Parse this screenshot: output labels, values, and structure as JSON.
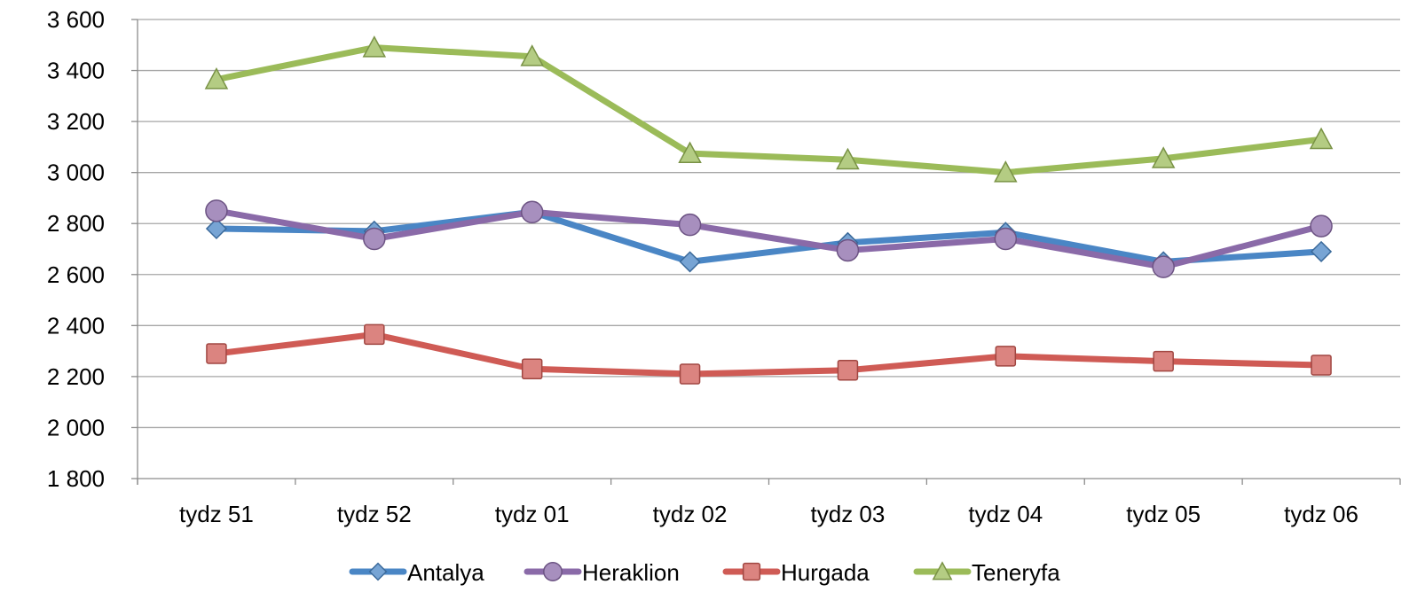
{
  "chart_data": {
    "type": "line",
    "categories": [
      "tydz 51",
      "tydz 52",
      "tydz 01",
      "tydz 02",
      "tydz 03",
      "tydz 04",
      "tydz 05",
      "tydz 06"
    ],
    "y_ticks": [
      "1 800",
      "2 000",
      "2 200",
      "2 400",
      "2 600",
      "2 800",
      "3 000",
      "3 200",
      "3 400",
      "3 600"
    ],
    "ylim": [
      1800,
      3600
    ],
    "ytick_step": 200,
    "grid": "horizontal",
    "legend_position": "bottom",
    "series": [
      {
        "name": "Antalya",
        "marker": "diamond",
        "color": "#4a86c5",
        "values": [
          2780,
          2770,
          2845,
          2650,
          2725,
          2765,
          2650,
          2690
        ]
      },
      {
        "name": "Heraklion",
        "marker": "circle",
        "color": "#8a6aa8",
        "values": [
          2850,
          2740,
          2845,
          2795,
          2695,
          2740,
          2630,
          2790
        ]
      },
      {
        "name": "Hurgada",
        "marker": "square",
        "color": "#cf5b55",
        "values": [
          2290,
          2365,
          2230,
          2210,
          2225,
          2280,
          2260,
          2245
        ]
      },
      {
        "name": "Teneryfa",
        "marker": "triangle",
        "color": "#9bbb59",
        "values": [
          3365,
          3490,
          3455,
          3075,
          3050,
          3000,
          3055,
          3130
        ]
      }
    ]
  }
}
